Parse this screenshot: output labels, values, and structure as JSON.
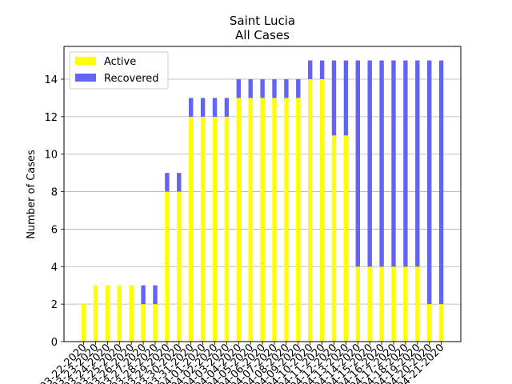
{
  "chart_data": {
    "type": "bar",
    "stacked": true,
    "title": "Saint Lucia",
    "subtitle": "All Cases",
    "xlabel": "",
    "ylabel": "Number of Cases",
    "ylim": [
      0,
      15.75
    ],
    "yticks": [
      0,
      2,
      4,
      6,
      8,
      10,
      12,
      14
    ],
    "grid": "y",
    "legend_position": "top-left",
    "categories": [
      "03-22-2020",
      "03-23-2020",
      "03-24-2020",
      "03-25-2020",
      "03-26-2020",
      "03-27-2020",
      "03-28-2020",
      "03-29-2020",
      "03-30-2020",
      "03-31-2020",
      "04-01-2020",
      "04-02-2020",
      "04-03-2020",
      "04-04-2020",
      "04-05-2020",
      "04-06-2020",
      "04-07-2020",
      "04-08-2020",
      "04-09-2020",
      "04-10-2020",
      "04-11-2020",
      "04-12-2020",
      "04-13-2020",
      "04-14-2020",
      "04-15-2020",
      "04-16-2020",
      "04-17-2020",
      "04-18-2020",
      "04-19-2020",
      "04-20-2020",
      "04-21-2020"
    ],
    "series": [
      {
        "name": "Active",
        "color": "#ffff00",
        "values": [
          2,
          3,
          3,
          3,
          3,
          2,
          2,
          8,
          8,
          12,
          12,
          12,
          12,
          13,
          13,
          13,
          13,
          13,
          13,
          14,
          14,
          11,
          11,
          4,
          4,
          4,
          4,
          4,
          4,
          2,
          2
        ]
      },
      {
        "name": "Recovered",
        "color": "#6363f5",
        "values": [
          0,
          0,
          0,
          0,
          0,
          1,
          1,
          1,
          1,
          1,
          1,
          1,
          1,
          1,
          1,
          1,
          1,
          1,
          1,
          1,
          1,
          4,
          4,
          11,
          11,
          11,
          11,
          11,
          11,
          13,
          13
        ]
      }
    ]
  }
}
